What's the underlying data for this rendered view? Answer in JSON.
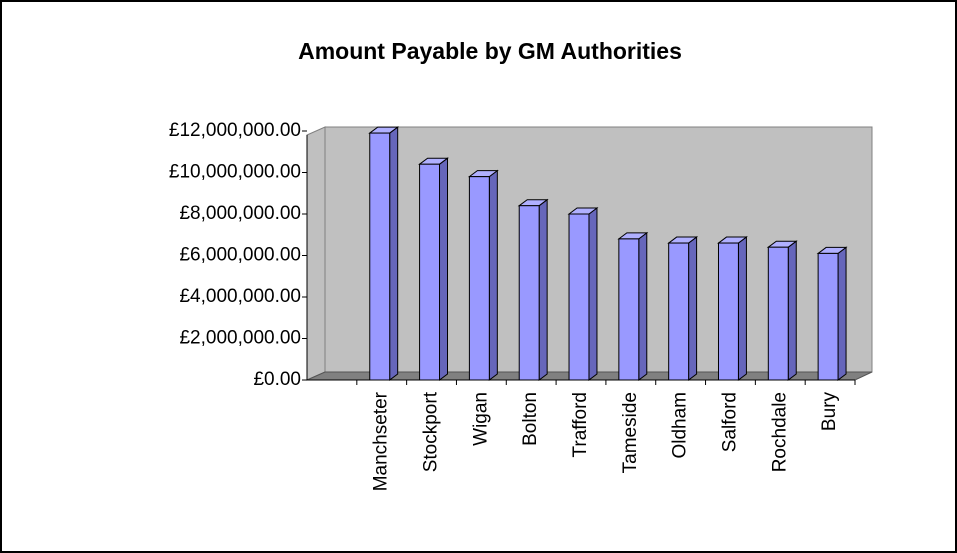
{
  "chart_data": {
    "type": "bar3d",
    "title": "Amount Payable by GM Authorities",
    "categories": [
      null,
      "Manchseter",
      "Stockport",
      "Wigan",
      "Bolton",
      "Trafford",
      "Tameside",
      "Oldham",
      "Salford",
      "Rochdale",
      "Bury"
    ],
    "values": [
      null,
      11900000,
      10400000,
      9800000,
      8400000,
      8000000,
      6800000,
      6600000,
      6600000,
      6400000,
      6100000
    ],
    "color": "#9999ff",
    "ylim": [
      0,
      12000000
    ],
    "yticks": [
      {
        "value": 0,
        "label": "£0.00"
      },
      {
        "value": 2000000,
        "label": "£2,000,000.00"
      },
      {
        "value": 4000000,
        "label": "£4,000,000.00"
      },
      {
        "value": 6000000,
        "label": "£6,000,000.00"
      },
      {
        "value": 8000000,
        "label": "£8,000,000.00"
      },
      {
        "value": 10000000,
        "label": "£10,000,000.00"
      },
      {
        "value": 12000000,
        "label": "£12,000,000.00"
      }
    ],
    "grid": false
  }
}
